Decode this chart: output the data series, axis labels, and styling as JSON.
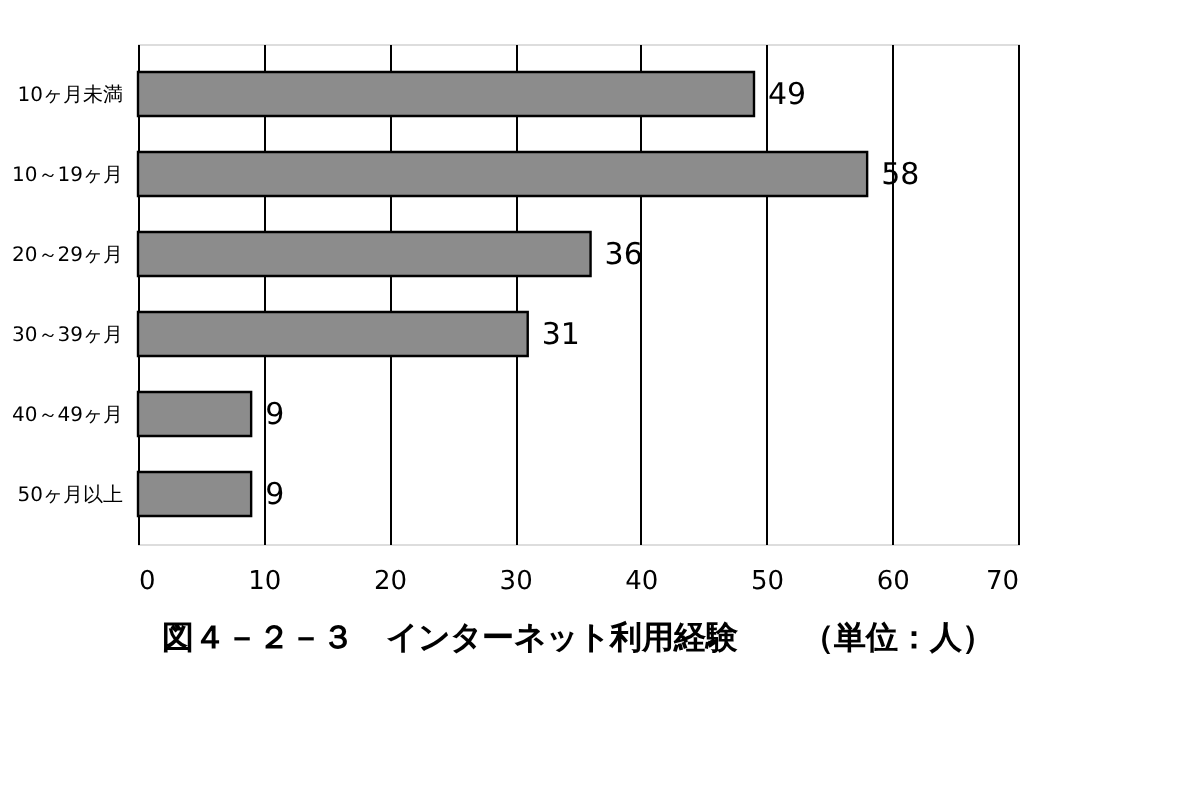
{
  "chart_data": {
    "type": "bar",
    "orientation": "horizontal",
    "title": "図４－２－３　インターネット利用経験　　（単位：人）",
    "categories": [
      "10ヶ月未満",
      "10～19ヶ月",
      "20～29ヶ月",
      "30～39ヶ月",
      "40～49ヶ月",
      "50ヶ月以上"
    ],
    "values": [
      49,
      58,
      36,
      31,
      9,
      9
    ],
    "color": "#8c8c8c",
    "xlim": [
      0,
      70
    ],
    "xticks": [
      0,
      10,
      20,
      30,
      40,
      50,
      60,
      70
    ],
    "grid": "x",
    "data_labels": true
  }
}
